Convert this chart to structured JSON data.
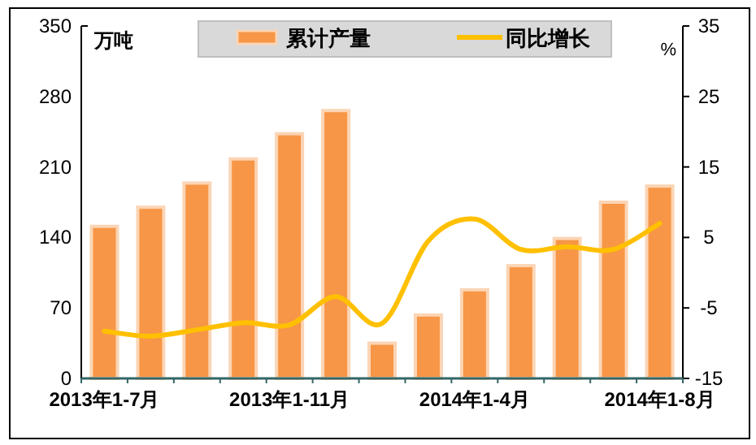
{
  "chart_data": {
    "type": "bar",
    "ylabel": "万吨",
    "y2label": "%",
    "categories": [
      "2013年1-7月",
      null,
      null,
      null,
      "2013年1-11月",
      null,
      null,
      null,
      "2014年1-4月",
      null,
      null,
      null,
      "2014年1-8月"
    ],
    "series": [
      {
        "name": "累计产量",
        "color": "#f79646",
        "values": [
          151,
          170,
          194,
          218,
          243,
          266,
          35,
          63,
          88,
          112,
          139,
          175,
          191
        ]
      },
      {
        "name": "同比增长",
        "type": "line",
        "axis": "y2",
        "color": "#ffc000",
        "values": [
          -8.3,
          -9.0,
          -8.1,
          -7.1,
          -7.4,
          -3.4,
          -7.2,
          4.5,
          7.6,
          3.3,
          3.7,
          3.3,
          7.0
        ]
      }
    ],
    "ylim": [
      0,
      350
    ],
    "yticks": [
      0,
      70,
      140,
      210,
      280,
      350
    ],
    "y2lim": [
      -15,
      35
    ],
    "y2ticks": [
      -15,
      -5,
      5,
      15,
      25,
      35
    ],
    "legend": "top",
    "grid": false,
    "marker": "none"
  }
}
